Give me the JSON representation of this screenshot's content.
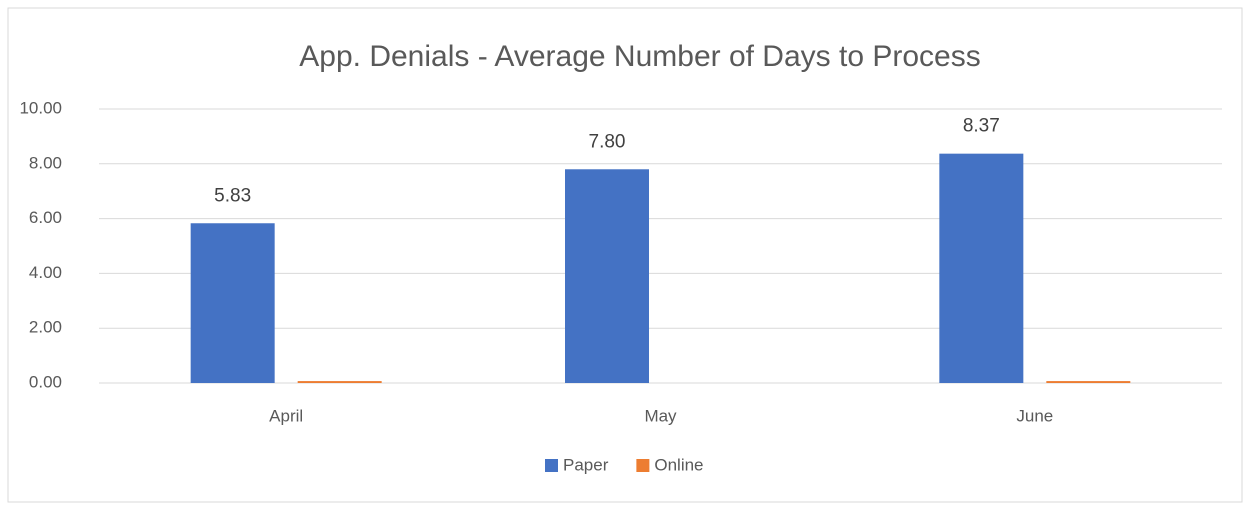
{
  "chart_data": {
    "type": "bar",
    "title": "App. Denials - Average Number of Days to Process",
    "categories": [
      "April",
      "May",
      "June"
    ],
    "series": [
      {
        "name": "Paper",
        "color": "#4472c4",
        "values": [
          5.83,
          7.8,
          8.37
        ],
        "value_labels": [
          "5.83",
          "7.80",
          "8.37"
        ]
      },
      {
        "name": "Online",
        "color": "#ed7d31",
        "values": [
          0.07,
          0,
          0.07
        ]
      }
    ],
    "ylim": [
      0,
      10
    ],
    "yticks": [
      {
        "value": 0,
        "label": "0.00"
      },
      {
        "value": 2,
        "label": "2.00"
      },
      {
        "value": 4,
        "label": "4.00"
      },
      {
        "value": 6,
        "label": "6.00"
      },
      {
        "value": 8,
        "label": "8.00"
      },
      {
        "value": 10,
        "label": "10.00"
      }
    ],
    "grid": true,
    "legend": "bottom"
  }
}
